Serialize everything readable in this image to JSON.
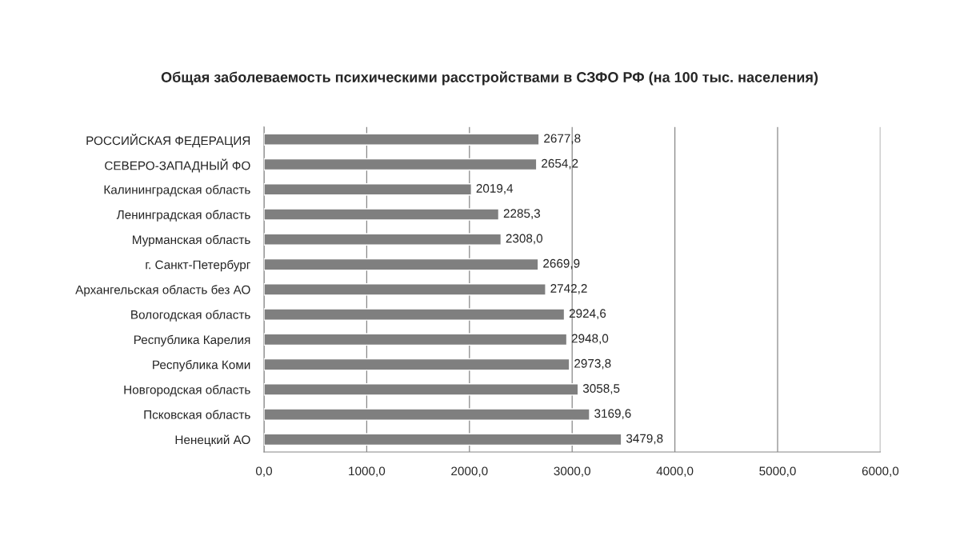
{
  "chart_data": {
    "type": "bar",
    "orientation": "horizontal",
    "title": "Общая заболеваемость психическими расстройствами в СЗФО РФ (на 100 тыс. населения)",
    "categories": [
      "РОССИЙСКАЯ ФЕДЕРАЦИЯ",
      "СЕВЕРО-ЗАПАДНЫЙ ФО",
      "Калининградская область",
      "Ленинградская область",
      "Мурманская область",
      "г. Санкт-Петербург",
      "Архангельская область без АО",
      "Вологодская область",
      "Республика Карелия",
      "Республика Коми",
      "Новгородская область",
      "Псковская область",
      "Ненецкий АО"
    ],
    "values": [
      2677.8,
      2654.2,
      2019.4,
      2285.3,
      2308.0,
      2669.9,
      2742.2,
      2924.6,
      2948.0,
      2973.8,
      3058.5,
      3169.6,
      3479.8
    ],
    "value_labels": [
      "2677,8",
      "2654,2",
      "2019,4",
      "2285,3",
      "2308,0",
      "2669,9",
      "2742,2",
      "2924,6",
      "2948,0",
      "2973,8",
      "3058,5",
      "3169,6",
      "3479,8"
    ],
    "color": "#7f7f7f",
    "xlim": [
      0,
      6000
    ],
    "xticks": [
      {
        "value": 0,
        "label": "0,0"
      },
      {
        "value": 1000,
        "label": "1000,0"
      },
      {
        "value": 2000,
        "label": "2000,0"
      },
      {
        "value": 3000,
        "label": "3000,0"
      },
      {
        "value": 4000,
        "label": "4000,0"
      },
      {
        "value": 5000,
        "label": "5000,0"
      },
      {
        "value": 6000,
        "label": "6000,0"
      }
    ],
    "grid": "x"
  }
}
